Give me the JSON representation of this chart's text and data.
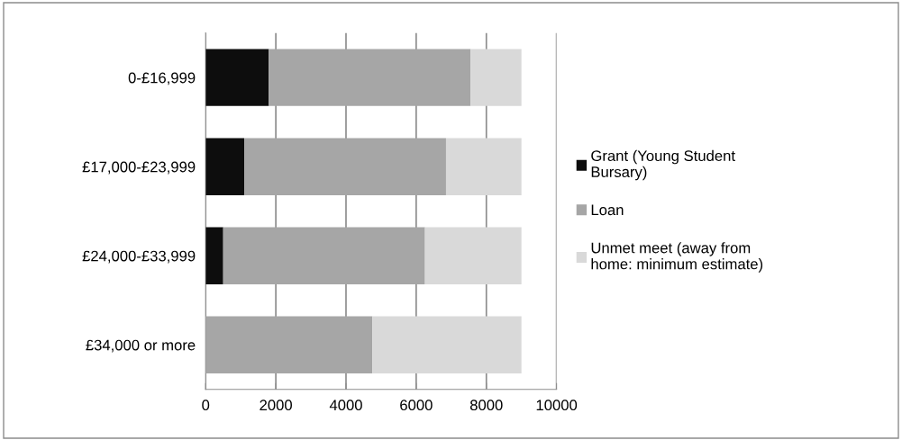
{
  "chart_data": {
    "type": "bar",
    "orientation": "horizontal",
    "stacked": true,
    "categories": [
      "0-£16,999",
      "£17,000-£23,999",
      "£24,000-£33,999",
      "£34,000 or more"
    ],
    "series": [
      {
        "name": "Grant (Young Student Bursary)",
        "color": "#0d0d0d",
        "values": [
          1800,
          1100,
          500,
          0
        ]
      },
      {
        "name": "Loan",
        "color": "#a6a6a6",
        "values": [
          5750,
          5750,
          5750,
          4750
        ]
      },
      {
        "name": "Unmet meet (away from home: minimum estimate)",
        "color": "#d9d9d9",
        "values": [
          1450,
          2150,
          2750,
          4250
        ]
      }
    ],
    "xlim": [
      0,
      10000
    ],
    "xticks": [
      0,
      2000,
      4000,
      6000,
      8000,
      10000
    ],
    "grid": "x",
    "legend": "right"
  }
}
